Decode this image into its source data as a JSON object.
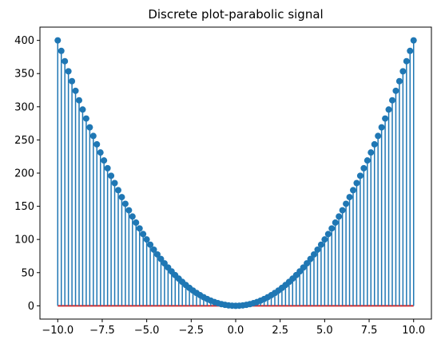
{
  "chart_data": {
    "type": "stem",
    "title": "Discrete plot-parabolic signal",
    "xlabel": "",
    "ylabel": "",
    "x_range": [
      -10,
      10
    ],
    "x_step": 0.2,
    "formula": "y = 4 * x^2",
    "xlim": [
      -11,
      11
    ],
    "ylim": [
      -20,
      420
    ],
    "xticks": [
      -10,
      -7.5,
      -5,
      -2.5,
      0,
      2.5,
      5,
      7.5,
      10
    ],
    "xtick_labels": [
      "−10.0",
      "−7.5",
      "−5.0",
      "−2.5",
      "0.0",
      "2.5",
      "5.0",
      "7.5",
      "10.0"
    ],
    "yticks": [
      0,
      50,
      100,
      150,
      200,
      250,
      300,
      350,
      400
    ],
    "ytick_labels": [
      "0",
      "50",
      "100",
      "150",
      "200",
      "250",
      "300",
      "350",
      "400"
    ],
    "colors": {
      "stem": "#1f77b4",
      "marker": "#1f77b4",
      "baseline": "#d62728"
    },
    "grid": false,
    "legend": "none"
  }
}
